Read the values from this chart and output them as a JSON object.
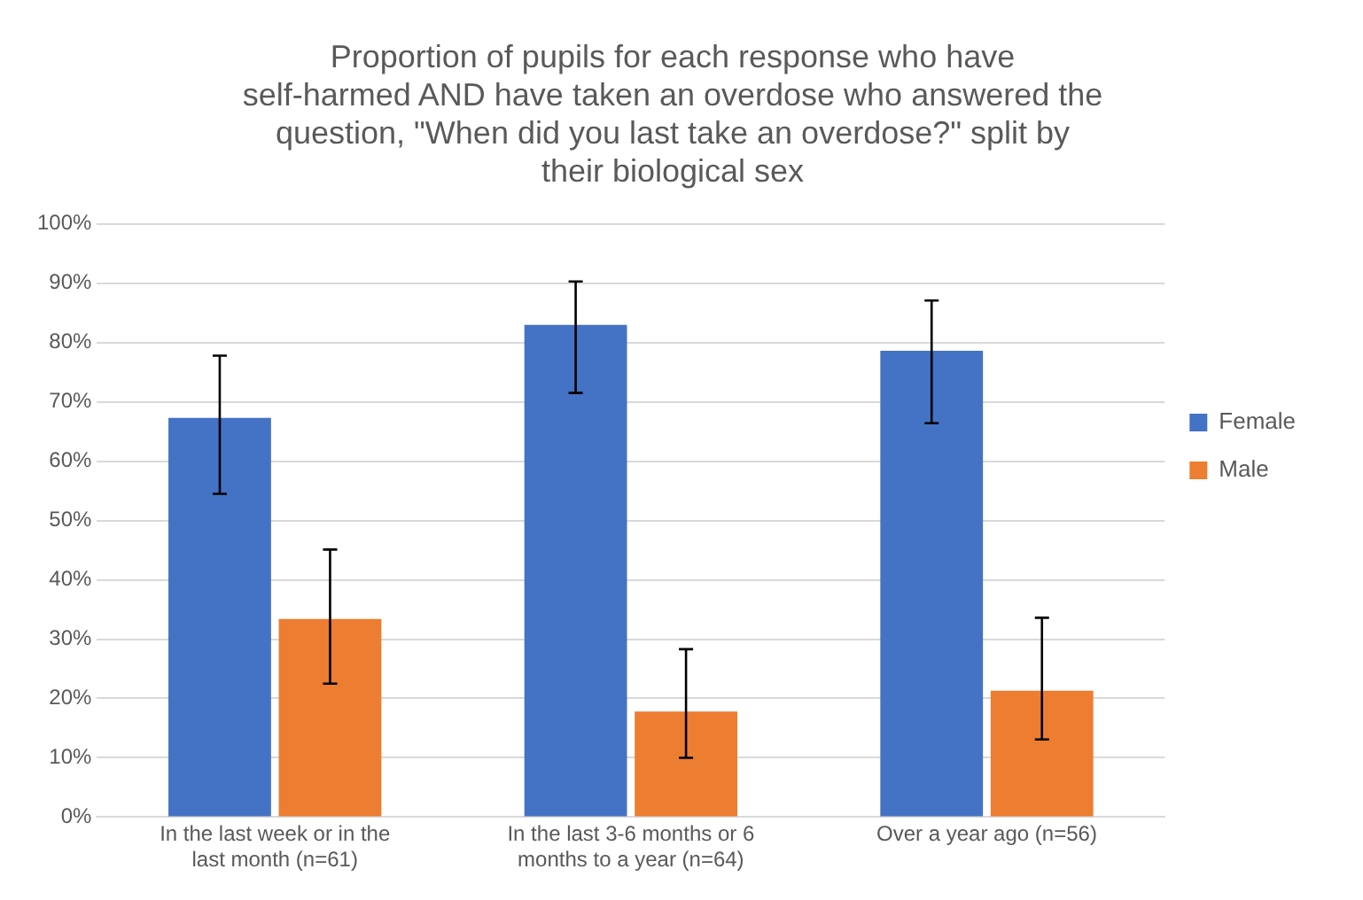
{
  "chart_data": {
    "type": "bar",
    "title": "Proportion of pupils for each response who have self-harmed AND have taken an overdose who answered the question, \"When did you last take an overdose?\" split by their biological sex",
    "categories": [
      "In the last week or in the last month (n=61)",
      "In the last 3-6 months or 6 months to a year (n=64)",
      "Over a year ago (n=56)"
    ],
    "series": [
      {
        "name": "Female",
        "color": "#4472c4",
        "values": [
          67.3,
          83.0,
          78.6
        ],
        "errors": [
          [
            54.5,
            77.8
          ],
          [
            71.5,
            90.3
          ],
          [
            66.4,
            87.1
          ]
        ]
      },
      {
        "name": "Male",
        "color": "#ed7d31",
        "values": [
          33.4,
          17.8,
          21.3
        ],
        "errors": [
          [
            22.5,
            45.1
          ],
          [
            10.0,
            28.3
          ],
          [
            13.1,
            33.6
          ]
        ]
      }
    ],
    "ylim": [
      0,
      100
    ],
    "yticks": [
      {
        "value": 0,
        "label": "0%"
      },
      {
        "value": 10,
        "label": "10%"
      },
      {
        "value": 20,
        "label": "20%"
      },
      {
        "value": 30,
        "label": "30%"
      },
      {
        "value": 40,
        "label": "40%"
      },
      {
        "value": 50,
        "label": "50%"
      },
      {
        "value": 60,
        "label": "60%"
      },
      {
        "value": 70,
        "label": "70%"
      },
      {
        "value": 80,
        "label": "80%"
      },
      {
        "value": 90,
        "label": "90%"
      },
      {
        "value": 100,
        "label": "100%"
      }
    ],
    "grid": "y",
    "legend": "right"
  }
}
